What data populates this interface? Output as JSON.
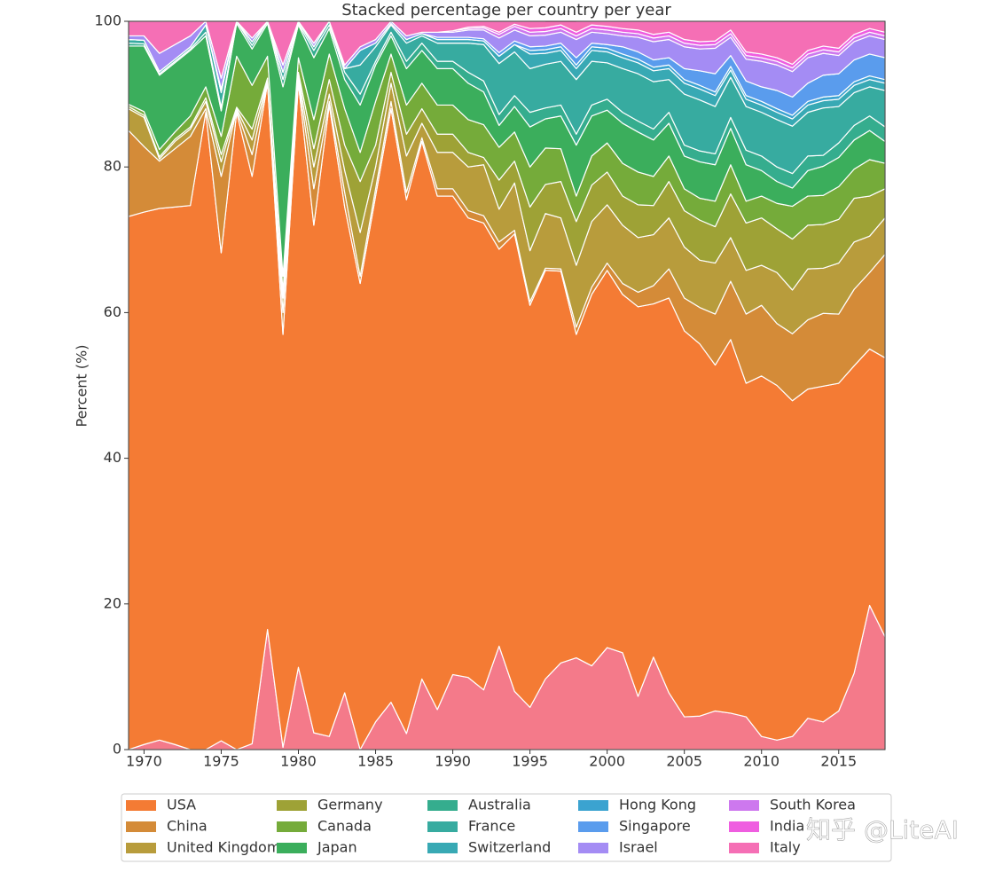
{
  "chart_data": {
    "type": "stacked-area",
    "title": "Stacked percentage per country per year",
    "y_label": "Percent (%)",
    "watermark": "知乎 @LiteAI",
    "x": [
      1969,
      1970,
      1971,
      1972,
      1973,
      1974,
      1975,
      1976,
      1977,
      1978,
      1979,
      1980,
      1981,
      1982,
      1983,
      1984,
      1985,
      1986,
      1987,
      1988,
      1989,
      1990,
      1991,
      1992,
      1993,
      1994,
      1995,
      1996,
      1997,
      1998,
      1999,
      2000,
      2001,
      2002,
      2003,
      2004,
      2005,
      2006,
      2007,
      2008,
      2009,
      2010,
      2011,
      2012,
      2013,
      2014,
      2015,
      2016,
      2017,
      2018
    ],
    "xlim": [
      1969,
      2018
    ],
    "xticks": [
      1970,
      1975,
      1980,
      1985,
      1990,
      1995,
      2000,
      2005,
      2010,
      2015
    ],
    "ylim": [
      0,
      100
    ],
    "yticks": [
      0,
      20,
      40,
      60,
      80,
      100
    ],
    "grid": false,
    "legend": "bottom",
    "series": [
      {
        "color": "#f47a8a",
        "values": [
          0,
          0.7,
          1.3,
          0.7,
          0,
          0,
          1.2,
          0,
          0.8,
          16.5,
          0.3,
          11.3,
          2.3,
          1.8,
          7.8,
          0,
          3.8,
          6.5,
          2.2,
          9.7,
          5.5,
          10.3,
          9.9,
          8.2,
          14.2,
          8.0,
          5.8,
          9.7,
          11.9,
          12.6,
          11.5,
          14.0,
          13.3,
          7.3,
          12.7,
          7.8,
          4.5,
          4.6,
          5.3,
          5.0,
          4.5,
          1.8,
          1.3,
          1.8,
          4.3,
          3.8,
          5.3,
          10.5,
          19.8,
          15.5
        ]
      },
      {
        "name": "USA",
        "color": "#f47b34",
        "values": [
          73.2,
          73.1,
          73.0,
          73.8,
          74.7,
          87.5,
          67.0,
          87.5,
          77.9,
          75.0,
          56.7,
          80.2,
          69.7,
          86.7,
          66.7,
          64.0,
          72.2,
          81.5,
          73.3,
          73.8,
          70.5,
          65.7,
          63.1,
          64.1,
          54.5,
          62.8,
          55.2,
          56.1,
          53.8,
          44.4,
          51.0,
          51.8,
          49.2,
          53.5,
          48.5,
          54.2,
          53.0,
          51.1,
          47.5,
          51.3,
          45.8,
          49.5,
          48.7,
          46.1,
          45.2,
          46.1,
          45.0,
          42.2,
          35.2,
          38.3
        ]
      },
      {
        "name": "China",
        "color": "#d48b38",
        "values": [
          11.8,
          9,
          6.5,
          8,
          9.5,
          0.5,
          10.5,
          0.3,
          3,
          0.3,
          3,
          0.5,
          5,
          0.5,
          2,
          1,
          1,
          1,
          1,
          0.5,
          1,
          1,
          1,
          1,
          1,
          0.5,
          0.5,
          0.3,
          0.3,
          1,
          1,
          1,
          1.5,
          2,
          2.5,
          4,
          4.5,
          5,
          7,
          8,
          9.5,
          9.7,
          8.5,
          9.2,
          9.5,
          10,
          9.5,
          10.5,
          10.5,
          14.2
        ]
      },
      {
        "name": "United Kingdom",
        "color": "#b89c3c",
        "values": [
          3,
          4,
          0.3,
          1,
          1,
          1,
          2,
          0.2,
          2,
          0.2,
          2,
          0.5,
          3,
          1,
          3,
          6,
          3,
          2.5,
          5,
          2,
          5,
          5,
          6,
          7,
          4.5,
          6.5,
          7,
          7.5,
          7,
          8.5,
          9,
          8,
          8,
          7.5,
          7,
          7,
          7,
          6.5,
          7,
          6,
          6,
          5.5,
          7,
          6,
          7,
          6.2,
          7,
          6.5,
          5,
          5
        ]
      },
      {
        "name": "Germany",
        "color": "#9ea236",
        "values": [
          0.3,
          0.3,
          0.3,
          0.3,
          0.3,
          0.5,
          1,
          0.2,
          1.5,
          0.2,
          1,
          0.5,
          2.5,
          2,
          3.5,
          7,
          3,
          1.5,
          3,
          2,
          2.5,
          2.5,
          2,
          1,
          4,
          3,
          6,
          4,
          5,
          6,
          5,
          4.5,
          4,
          4.5,
          4,
          5,
          5,
          5.5,
          5,
          6,
          6.5,
          6.5,
          6,
          7,
          6,
          6,
          6,
          6,
          5.5,
          4
        ]
      },
      {
        "name": "Canada",
        "color": "#75ab3a",
        "values": [
          0.3,
          0.5,
          1,
          1,
          1.5,
          1.5,
          2.5,
          7,
          6,
          3,
          2,
          2,
          4,
          3.5,
          5,
          4,
          6,
          2.5,
          4,
          3.5,
          4,
          4,
          4.5,
          4.5,
          4.5,
          4,
          5.5,
          5,
          4.5,
          3.5,
          4,
          4,
          4.5,
          4.5,
          4,
          3.5,
          3,
          3,
          3.5,
          4,
          3,
          3,
          3.5,
          4.5,
          4,
          4,
          4.5,
          4,
          5,
          3.5
        ]
      },
      {
        "name": "Japan",
        "color": "#3bae5c",
        "values": [
          8,
          9,
          10.2,
          9.5,
          9,
          7,
          3.5,
          4.5,
          5,
          4.5,
          26,
          4.5,
          8.5,
          3.5,
          4,
          6.5,
          5,
          2.5,
          5,
          4.5,
          5,
          5,
          5,
          4.5,
          3,
          3.5,
          5.5,
          4,
          4.5,
          7,
          5.5,
          4.5,
          5.5,
          5.5,
          5,
          4.5,
          4.5,
          5,
          5,
          5,
          5,
          3.5,
          3,
          2.5,
          3.5,
          4,
          4,
          4,
          4,
          3
        ]
      },
      {
        "name": "Australia",
        "color": "#35ad8e",
        "values": [
          0.4,
          0.3,
          0.2,
          0.2,
          0.2,
          0.5,
          0.5,
          0.3,
          0.5,
          0.3,
          1,
          0.2,
          1,
          0.5,
          1,
          1.5,
          0.5,
          0.5,
          1,
          1,
          1,
          1,
          1.5,
          1.5,
          1.5,
          1.5,
          2,
          1.5,
          1.5,
          1.5,
          1.5,
          1.5,
          1.5,
          1.5,
          1.5,
          1.5,
          1.5,
          1.5,
          1.5,
          1.5,
          2,
          2,
          2,
          2,
          2,
          1.5,
          2,
          2,
          2,
          2
        ]
      },
      {
        "name": "France",
        "color": "#37aba0",
        "values": [
          0.5,
          0.5,
          0.3,
          0.3,
          0.3,
          1,
          2,
          0,
          0.5,
          0,
          1,
          0.3,
          0.5,
          0.5,
          0.5,
          4,
          2,
          1,
          2.5,
          1,
          2.5,
          2.5,
          4,
          5,
          7,
          6,
          6,
          6,
          6,
          7.5,
          6,
          5,
          6,
          6.5,
          6.5,
          4.5,
          7,
          7,
          6.5,
          5.5,
          6,
          6,
          6.5,
          6.5,
          6,
          6.5,
          5,
          4.5,
          4,
          5
        ]
      },
      {
        "name": "Switzerland",
        "color": "#38a9b4",
        "values": [
          0,
          0,
          0,
          0,
          0,
          0,
          0.5,
          0,
          0,
          0,
          0,
          0,
          0,
          0,
          0,
          2,
          0.5,
          0.2,
          0.5,
          0.3,
          0.5,
          0.5,
          0.5,
          0.5,
          1,
          1,
          2,
          1.5,
          1.5,
          1.5,
          1.5,
          1.5,
          1.5,
          1.5,
          1.5,
          1.5,
          1.5,
          1.5,
          1.5,
          1,
          1,
          1,
          1,
          1,
          1,
          1,
          1,
          1,
          1,
          1
        ]
      },
      {
        "name": "Hong Kong",
        "color": "#3ba3d0",
        "values": [
          0,
          0,
          0,
          0,
          0,
          0,
          0,
          0,
          0,
          0,
          0,
          0,
          0,
          0,
          0,
          0,
          0,
          0,
          0,
          0,
          0,
          0,
          0,
          0,
          0,
          0,
          0.5,
          0.5,
          0.5,
          0.5,
          0.5,
          0.5,
          0.5,
          0.5,
          0.5,
          0.5,
          0.5,
          0.5,
          0.5,
          0.5,
          0.5,
          0.5,
          0.5,
          0.5,
          0.5,
          0.5,
          0.5,
          0.5,
          0.5,
          0.5
        ]
      },
      {
        "name": "Singapore",
        "color": "#5a9ced",
        "values": [
          0,
          0,
          0,
          0,
          0,
          0,
          0,
          0,
          0,
          0,
          0,
          0,
          0,
          0,
          0,
          0,
          0,
          0,
          0,
          0,
          0.3,
          0.3,
          0.3,
          0.3,
          0.5,
          0.5,
          0.5,
          0.5,
          0.5,
          1,
          0.5,
          0.5,
          1,
          1,
          1,
          1,
          1.5,
          2,
          2.5,
          1.5,
          2,
          2,
          2.5,
          2.5,
          2.5,
          3,
          3,
          3,
          3,
          3
        ]
      },
      {
        "name": "Israel",
        "color": "#a48cf4",
        "values": [
          0.5,
          0.6,
          2.5,
          2,
          1.5,
          0.5,
          1.5,
          0,
          0.5,
          0,
          1,
          0,
          0.5,
          0,
          0.5,
          0.5,
          0.5,
          0.3,
          0.5,
          0.2,
          0.7,
          0.7,
          1,
          1.2,
          2,
          1.5,
          1.5,
          1.5,
          1.5,
          2.5,
          1.5,
          1.5,
          1.5,
          2,
          2.5,
          2.5,
          3,
          3,
          3.5,
          2.5,
          3,
          3.5,
          3.5,
          3.5,
          3.5,
          3,
          2.5,
          2.5,
          2.5,
          2.5
        ]
      },
      {
        "name": "South Korea",
        "color": "#cd78ee",
        "values": [
          0,
          0,
          0,
          0,
          0,
          0,
          0,
          0,
          0,
          0,
          0,
          0,
          0,
          0,
          0,
          0,
          0,
          0,
          0,
          0,
          0,
          0.2,
          0.2,
          0.3,
          0.5,
          0.5,
          0.5,
          0.5,
          0.5,
          0.5,
          0.5,
          0.5,
          0.5,
          0.5,
          0.5,
          0.5,
          0.5,
          0.5,
          0.5,
          0.5,
          0.5,
          0.5,
          0.5,
          0.5,
          0.5,
          0.5,
          0.5,
          0.5,
          0.5,
          0.5
        ]
      },
      {
        "name": "India",
        "color": "#ef5ee0",
        "values": [
          0,
          0,
          0,
          0,
          0,
          0,
          0,
          0,
          0,
          0,
          0,
          0,
          0,
          0,
          0,
          0,
          0,
          0,
          0,
          0,
          0,
          0,
          0.2,
          0.2,
          0.3,
          0.3,
          0.5,
          0.5,
          0.5,
          0.5,
          0.5,
          0.5,
          0.5,
          0.5,
          0.5,
          0.5,
          0.5,
          0.5,
          0.5,
          0.5,
          0.5,
          0.5,
          0.5,
          0.5,
          0.5,
          0.5,
          0.5,
          0.5,
          0.5,
          0.5
        ]
      },
      {
        "name": "Italy",
        "color": "#f56fb5",
        "values": [
          2,
          2,
          4.4,
          3.2,
          2,
          0,
          7.8,
          0,
          2.3,
          0,
          6,
          0,
          3,
          0,
          6,
          3.5,
          2.5,
          0,
          2,
          1.5,
          1.5,
          1.3,
          0.8,
          0.7,
          1.5,
          0.4,
          1,
          0.9,
          1.5,
          1.5,
          0.5,
          0.7,
          1,
          1.2,
          1.8,
          1.5,
          2.5,
          2.8,
          2.7,
          1.2,
          4.2,
          4.5,
          5,
          5.9,
          4,
          3.4,
          3.7,
          1.8,
          1,
          1.5
        ]
      }
    ]
  }
}
